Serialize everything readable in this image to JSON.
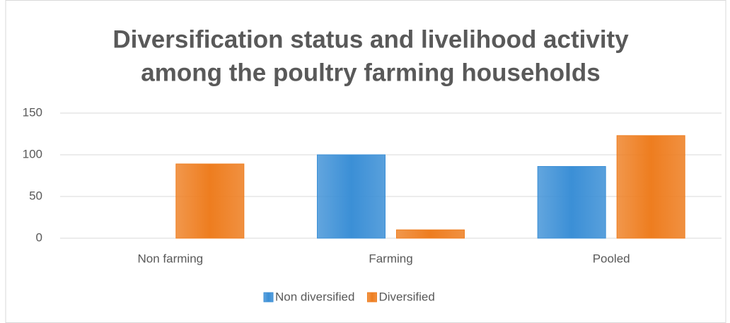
{
  "chart_data": {
    "type": "bar",
    "title": [
      "Diversification status and livelihood activity",
      "among the poultry farming households"
    ],
    "categories": [
      "Non farming",
      "Farming",
      "Pooled"
    ],
    "series": [
      {
        "name": "Non diversified",
        "color": "#3b8fd6",
        "values": [
          0,
          100,
          86
        ]
      },
      {
        "name": "Diversified",
        "color": "#ee7d1f",
        "values": [
          89,
          10,
          123
        ]
      }
    ],
    "ylim": [
      0,
      150
    ],
    "yticks": [
      0,
      50,
      100,
      150
    ],
    "grid": true,
    "legend": "bottom"
  }
}
